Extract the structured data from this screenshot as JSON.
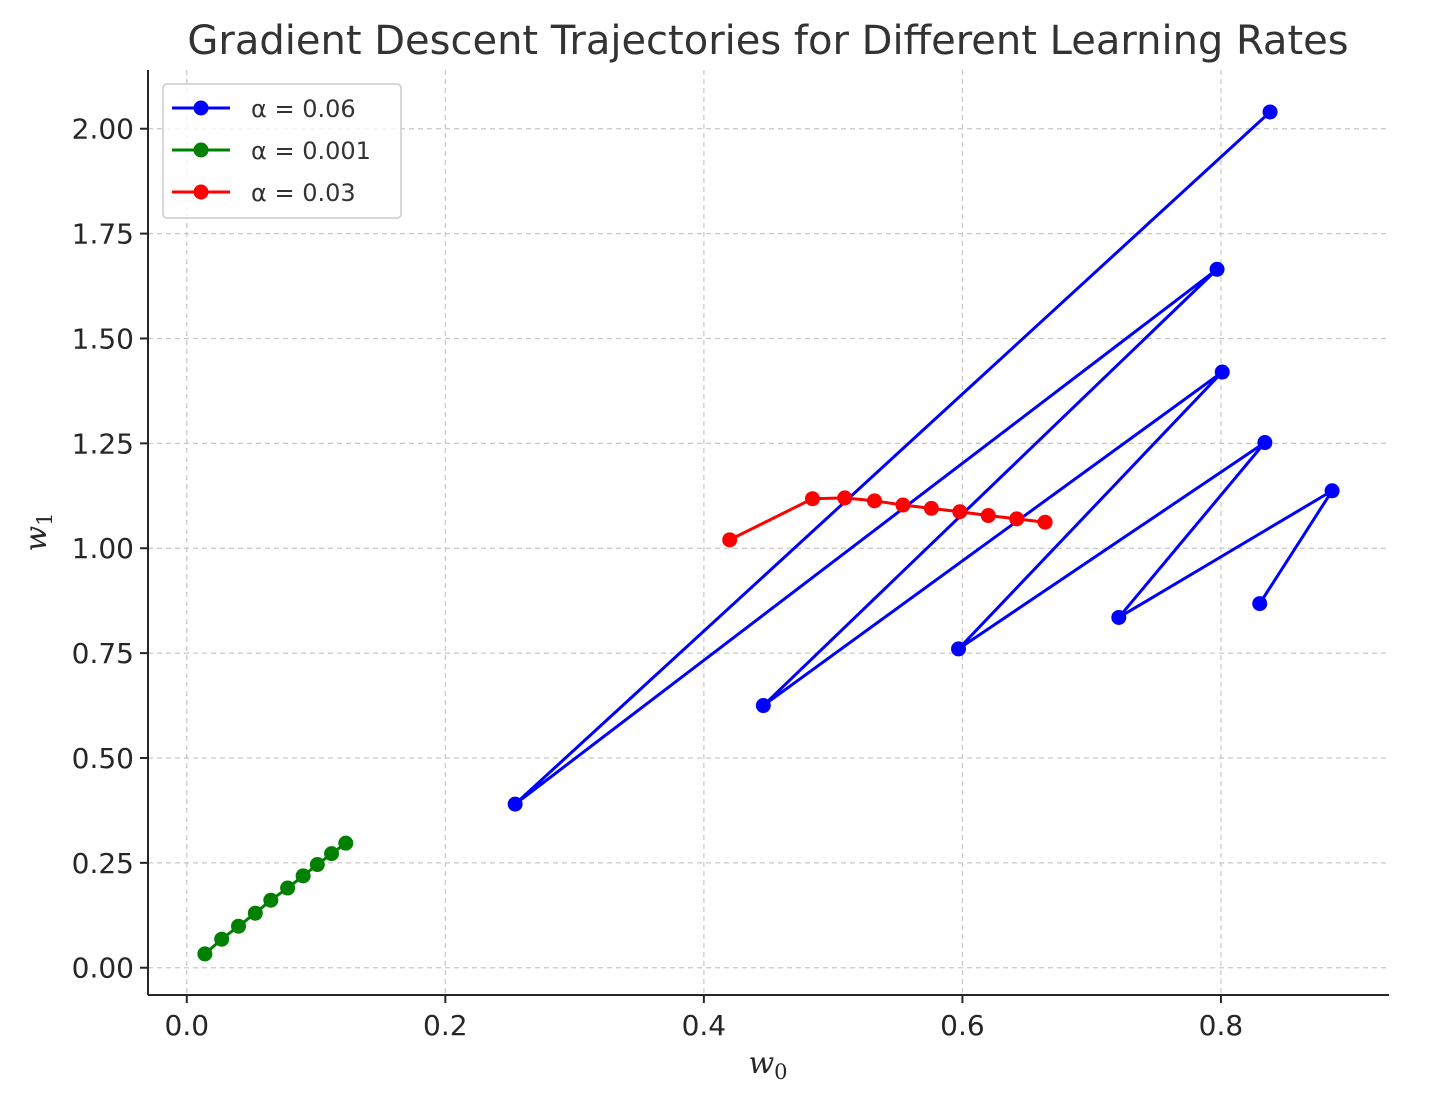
{
  "chart_data": {
    "type": "line",
    "title": "Gradient Descent Trajectories for Different Learning Rates",
    "xlabel": "w",
    "xlabel_sub": "0",
    "ylabel": "w",
    "ylabel_sub": "1",
    "xlim": [
      -0.03,
      0.93
    ],
    "ylim": [
      -0.065,
      2.14
    ],
    "xticks": [
      0.0,
      0.2,
      0.4,
      0.6,
      0.8
    ],
    "xtick_labels": [
      "0.0",
      "0.2",
      "0.4",
      "0.6",
      "0.8"
    ],
    "yticks": [
      0.0,
      0.25,
      0.5,
      0.75,
      1.0,
      1.25,
      1.5,
      1.75,
      2.0
    ],
    "ytick_labels": [
      "0.00",
      "0.25",
      "0.50",
      "0.75",
      "1.00",
      "1.25",
      "1.50",
      "1.75",
      "2.00"
    ],
    "grid": true,
    "legend_position": "top-left",
    "series": [
      {
        "name": "α = 0.06",
        "color": "#0000ff",
        "x": [
          0.838,
          0.254,
          0.797,
          0.446,
          0.801,
          0.597,
          0.834,
          0.721,
          0.886,
          0.83
        ],
        "y": [
          2.04,
          0.39,
          1.665,
          0.625,
          1.42,
          0.76,
          1.252,
          0.835,
          1.137,
          0.868
        ]
      },
      {
        "name": "α = 0.001",
        "color": "#008000",
        "x": [
          0.014,
          0.027,
          0.04,
          0.053,
          0.065,
          0.078,
          0.09,
          0.101,
          0.112,
          0.123
        ],
        "y": [
          0.033,
          0.068,
          0.099,
          0.13,
          0.161,
          0.19,
          0.219,
          0.246,
          0.272,
          0.297
        ]
      },
      {
        "name": "α = 0.03",
        "color": "#ff0000",
        "x": [
          0.42,
          0.484,
          0.509,
          0.532,
          0.554,
          0.576,
          0.598,
          0.62,
          0.642,
          0.664
        ],
        "y": [
          1.02,
          1.118,
          1.12,
          1.113,
          1.103,
          1.095,
          1.087,
          1.078,
          1.07,
          1.062
        ]
      }
    ]
  }
}
